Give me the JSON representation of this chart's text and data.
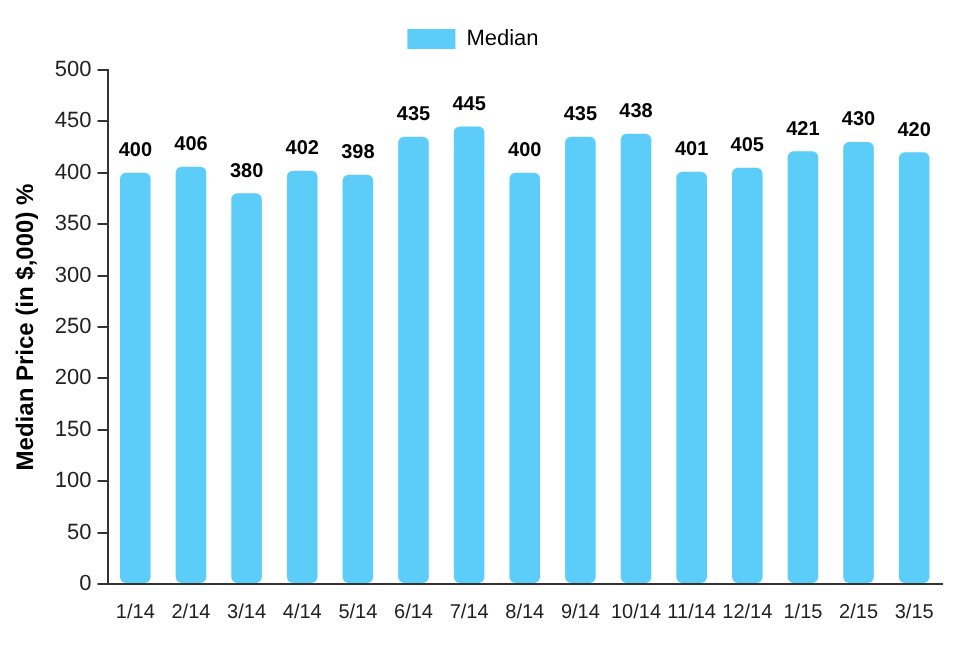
{
  "chart_data": {
    "type": "bar",
    "ylabel": "Median Price (in $,000) %",
    "categories": [
      "1/14",
      "2/14",
      "3/14",
      "4/14",
      "5/14",
      "6/14",
      "7/14",
      "8/14",
      "9/14",
      "10/14",
      "11/14",
      "12/14",
      "1/15",
      "2/15",
      "3/15"
    ],
    "series": [
      {
        "name": "Median",
        "color": "#5bcdf8",
        "values": [
          400,
          406,
          380,
          402,
          398,
          435,
          445,
          400,
          435,
          438,
          401,
          405,
          421,
          430,
          420
        ]
      }
    ],
    "ylim": [
      0,
      500
    ],
    "yticks": [
      0,
      50,
      100,
      150,
      200,
      250,
      300,
      350,
      400,
      450,
      500
    ],
    "grid": false,
    "legend": "top",
    "data_labels": true
  }
}
